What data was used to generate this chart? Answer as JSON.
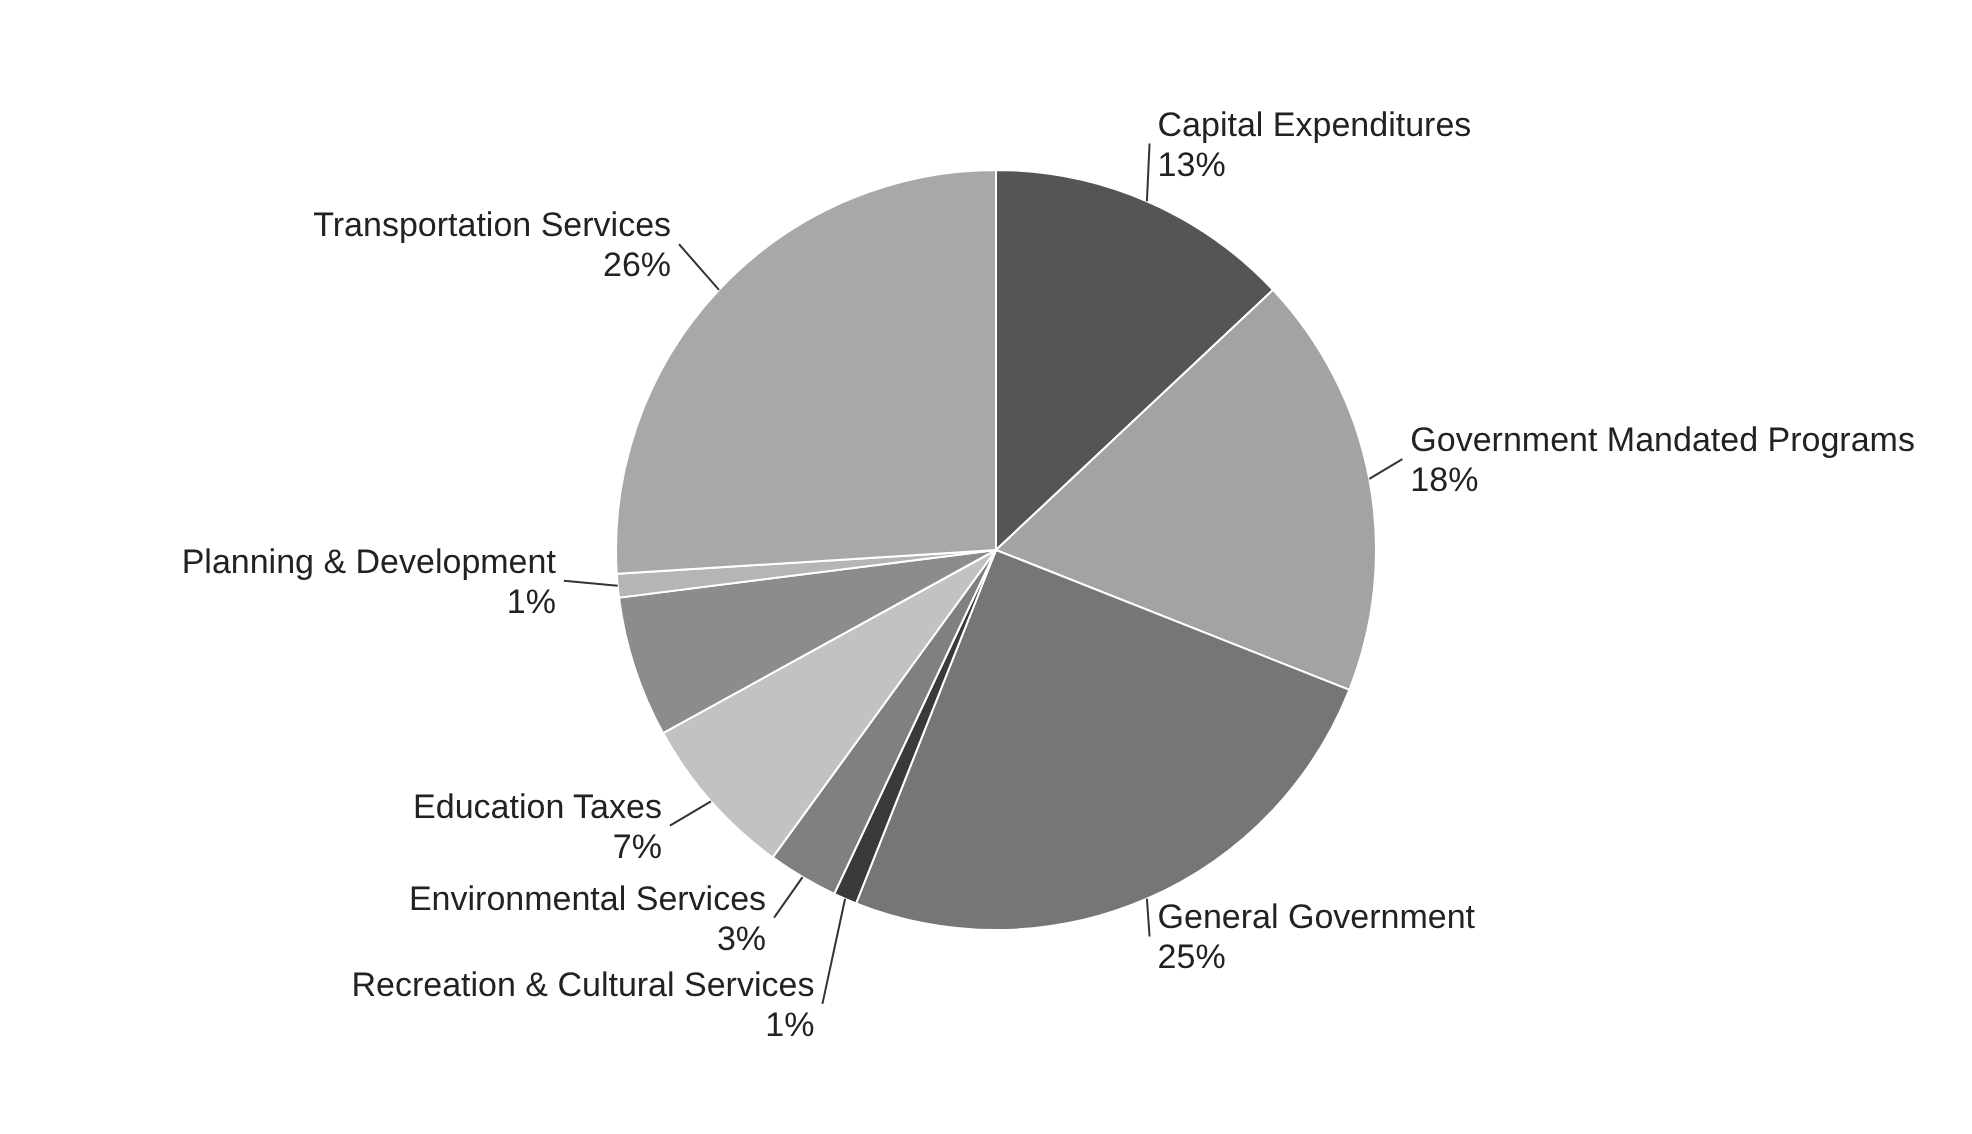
{
  "chart_data": {
    "type": "pie",
    "categories": [
      "Capital Expenditures",
      "Government Mandated Programs",
      "General Government",
      "Recreation & Cultural Services",
      "Environmental Services",
      "Education Taxes",
      null,
      "Planning & Development",
      "Transportation Services"
    ],
    "values": [
      13,
      18,
      25,
      1,
      3,
      7,
      6,
      1,
      26
    ],
    "colors": [
      "#555555",
      "#a3a3a3",
      "#767676",
      "#3a3a3a",
      "#808080",
      "#c2c2c2",
      "#8c8c8c",
      "#b5b5b5",
      "#a8a8a8"
    ],
    "value_labels": [
      "13%",
      "18%",
      "25%",
      "1%",
      "3%",
      "7%",
      null,
      "1%",
      "26%"
    ]
  }
}
